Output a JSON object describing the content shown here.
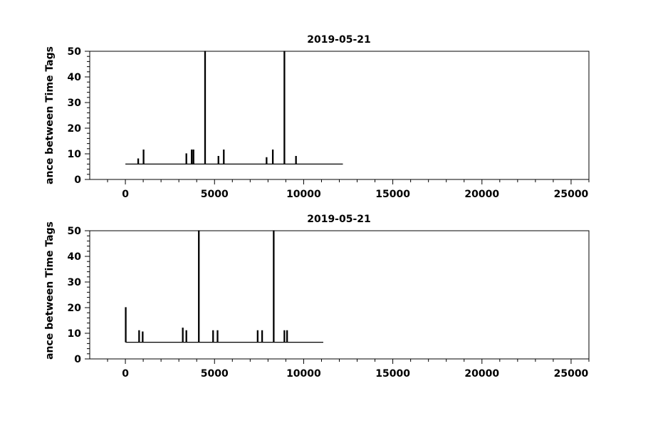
{
  "chart_data": [
    {
      "type": "line",
      "title": "2019-05-21",
      "ylabel": "ance between Time Tags",
      "xlabel": "",
      "xlim": [
        -2000,
        26000
      ],
      "ylim": [
        0,
        50
      ],
      "x_ticks": [
        0,
        5000,
        10000,
        15000,
        20000,
        25000
      ],
      "y_ticks": [
        0,
        10,
        20,
        30,
        40,
        50
      ],
      "grid": false,
      "series": [
        {
          "baseline": 6,
          "x_range": [
            0,
            12200
          ],
          "spikes": [
            {
              "x": 700,
              "y": 8
            },
            {
              "x": 1000,
              "y": 11.5
            },
            {
              "x": 3400,
              "y": 10
            },
            {
              "x": 3700,
              "y": 11.5
            },
            {
              "x": 3800,
              "y": 11.5
            },
            {
              "x": 4450,
              "y": 50
            },
            {
              "x": 5200,
              "y": 9
            },
            {
              "x": 5500,
              "y": 11.5
            },
            {
              "x": 7900,
              "y": 8.5
            },
            {
              "x": 8250,
              "y": 11.5
            },
            {
              "x": 8900,
              "y": 50
            },
            {
              "x": 9550,
              "y": 9
            }
          ]
        }
      ]
    },
    {
      "type": "line",
      "title": "2019-05-21",
      "ylabel": "ance between Time Tags",
      "xlabel": "",
      "xlim": [
        -2000,
        26000
      ],
      "ylim": [
        0,
        50
      ],
      "x_ticks": [
        0,
        5000,
        10000,
        15000,
        20000,
        25000
      ],
      "y_ticks": [
        0,
        10,
        20,
        30,
        40,
        50
      ],
      "grid": false,
      "series": [
        {
          "baseline": 6.5,
          "x_range": [
            0,
            11100
          ],
          "spikes": [
            {
              "x": 0,
              "y": 20
            },
            {
              "x": 750,
              "y": 11
            },
            {
              "x": 950,
              "y": 10.5
            },
            {
              "x": 3200,
              "y": 12
            },
            {
              "x": 3400,
              "y": 11
            },
            {
              "x": 4100,
              "y": 50
            },
            {
              "x": 4900,
              "y": 11
            },
            {
              "x": 5150,
              "y": 11
            },
            {
              "x": 7400,
              "y": 11
            },
            {
              "x": 7650,
              "y": 11
            },
            {
              "x": 8300,
              "y": 50
            },
            {
              "x": 8900,
              "y": 11
            },
            {
              "x": 9050,
              "y": 11
            }
          ]
        }
      ]
    }
  ]
}
